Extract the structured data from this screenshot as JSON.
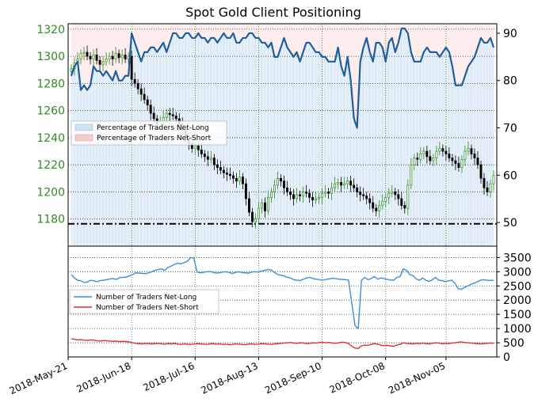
{
  "chart_data": [
    {
      "type": "candlestick-with-area-and-line",
      "title": "Spot Gold Client Positioning",
      "x_ticks": [
        "2018-May-21",
        "2018-Jun-18",
        "2018-Jul-16",
        "2018-Aug-13",
        "2018-Sep-10",
        "2018-Oct-08",
        "2018-Nov-05"
      ],
      "y_left": {
        "ticks": [
          1180,
          1200,
          1220,
          1240,
          1260,
          1280,
          1300,
          1320
        ],
        "range": [
          1160,
          1324
        ],
        "color": "#2e8b22"
      },
      "y_right": {
        "ticks": [
          50,
          60,
          70,
          80,
          90
        ],
        "range": [
          45,
          92
        ]
      },
      "legend": {
        "placement": "center-left",
        "entries": [
          "Percentage of Traders Net-Long",
          "Percentage of Traders Net-Short"
        ]
      },
      "reference_line": {
        "value": 1176.5,
        "style": "dash-dot"
      },
      "grid": true,
      "colors": {
        "net_long_area": "#cfe2f3",
        "net_short_area": "#f8cccc",
        "line": "#1f5f9e",
        "candle_up": "#2e8b22",
        "candle_down": "#000000"
      },
      "series": [
        {
          "name": "Percentage of Traders Net-Long",
          "values": [
            81,
            83,
            84,
            78,
            79,
            78,
            79,
            83,
            82,
            82,
            81,
            82,
            81,
            80,
            82,
            80,
            80,
            81,
            81,
            90,
            88,
            86,
            84,
            86,
            86,
            87,
            87,
            86,
            87,
            88,
            86,
            88,
            90,
            90,
            89,
            89,
            90,
            90,
            89,
            89,
            90,
            89,
            89,
            88,
            89,
            89,
            88,
            89,
            90,
            89,
            89,
            90,
            88,
            88,
            89,
            89,
            90,
            90,
            89,
            89,
            88,
            88,
            87,
            88,
            85,
            85,
            87,
            89,
            87,
            86,
            85,
            86,
            84,
            86,
            88,
            88,
            87,
            86,
            86,
            85,
            85,
            84,
            84,
            84,
            87,
            83,
            81,
            85,
            80,
            72,
            70,
            84,
            87,
            89,
            86,
            84,
            88,
            88,
            87,
            84,
            88,
            89,
            86,
            88,
            91,
            91,
            90,
            86,
            84,
            84,
            84,
            86,
            87,
            86,
            86,
            86,
            85,
            86,
            87,
            86,
            83,
            79,
            79,
            79,
            81,
            83,
            84,
            85,
            87,
            89,
            88,
            88,
            89,
            87
          ]
        },
        {
          "name": "Percentage of Traders Net-Short",
          "values": [
            19,
            17,
            16,
            22,
            21,
            22,
            21,
            17,
            18,
            18,
            19,
            18,
            19,
            20,
            18,
            20,
            20,
            19,
            19,
            10,
            12,
            14,
            16,
            14,
            14,
            13,
            13,
            14,
            13,
            12,
            14,
            12,
            10,
            10,
            11,
            11,
            10,
            10,
            11,
            11,
            10,
            11,
            11,
            12,
            11,
            11,
            12,
            11,
            10,
            11,
            11,
            10,
            12,
            12,
            11,
            11,
            10,
            10,
            11,
            11,
            12,
            12,
            13,
            12,
            15,
            15,
            13,
            11,
            13,
            14,
            15,
            14,
            16,
            14,
            12,
            12,
            13,
            14,
            14,
            15,
            15,
            16,
            16,
            16,
            13,
            17,
            19,
            15,
            20,
            28,
            30,
            16,
            13,
            11,
            14,
            16,
            12,
            12,
            13,
            16,
            12,
            11,
            14,
            12,
            9,
            9,
            10,
            14,
            16,
            16,
            16,
            14,
            13,
            14,
            14,
            14,
            15,
            14,
            13,
            14,
            17,
            21,
            21,
            21,
            19,
            17,
            16,
            15,
            13,
            11,
            12,
            12,
            11,
            13
          ]
        },
        {
          "name": "Spot Gold",
          "values": [
            1291,
            1295,
            1298,
            1302,
            1303,
            1300,
            1298,
            1301,
            1297,
            1294,
            1296,
            1298,
            1300,
            1298,
            1302,
            1299,
            1301,
            1298,
            1300,
            1283,
            1280,
            1276,
            1272,
            1268,
            1264,
            1258,
            1254,
            1250,
            1252,
            1255,
            1258,
            1257,
            1256,
            1254,
            1250,
            1245,
            1240,
            1236,
            1232,
            1234,
            1231,
            1228,
            1226,
            1224,
            1225,
            1220,
            1218,
            1216,
            1214,
            1213,
            1212,
            1210,
            1208,
            1211,
            1206,
            1195,
            1185,
            1178,
            1180,
            1188,
            1192,
            1186,
            1196,
            1200,
            1205,
            1210,
            1208,
            1203,
            1200,
            1198,
            1195,
            1198,
            1197,
            1200,
            1199,
            1196,
            1194,
            1195,
            1196,
            1199,
            1200,
            1199,
            1203,
            1206,
            1207,
            1205,
            1206,
            1208,
            1205,
            1203,
            1200,
            1198,
            1197,
            1195,
            1192,
            1188,
            1186,
            1190,
            1193,
            1196,
            1199,
            1200,
            1198,
            1195,
            1190,
            1188,
            1205,
            1220,
            1225,
            1224,
            1228,
            1230,
            1226,
            1223,
            1225,
            1230,
            1232,
            1230,
            1228,
            1225,
            1223,
            1221,
            1218,
            1224,
            1230,
            1232,
            1228,
            1225,
            1220,
            1210,
            1203,
            1200,
            1206,
            1212
          ]
        }
      ]
    },
    {
      "type": "line",
      "y_ticks": [
        0,
        500,
        1000,
        1500,
        2000,
        2500,
        3000,
        3500
      ],
      "y_range": [
        0,
        3900
      ],
      "legend": {
        "placement": "center-left",
        "entries": [
          "Number of Traders Net-Long",
          "Number of Traders Net-Short"
        ]
      },
      "grid": true,
      "colors": {
        "net_long": "#3c8fd8",
        "net_short": "#e03030"
      },
      "series": [
        {
          "name": "Number of Traders Net-Long",
          "values": [
            2900,
            2780,
            2700,
            2680,
            2620,
            2640,
            2700,
            2680,
            2650,
            2690,
            2700,
            2720,
            2750,
            2760,
            2730,
            2790,
            2800,
            2810,
            2850,
            2900,
            2960,
            2950,
            2940,
            2930,
            2960,
            3000,
            3050,
            3080,
            3100,
            3050,
            3150,
            3200,
            3260,
            3300,
            3280,
            3320,
            3370,
            3500,
            3480,
            2990,
            2960,
            2980,
            3000,
            3010,
            2980,
            2950,
            2960,
            2990,
            3000,
            2970,
            2940,
            2980,
            3000,
            2970,
            2960,
            2950,
            2990,
            3000,
            2990,
            3020,
            3050,
            3080,
            3060,
            2980,
            2900,
            2880,
            2850,
            2800,
            2780,
            2720,
            2700,
            2690,
            2740,
            2780,
            2800,
            2760,
            2740,
            2720,
            2700,
            2730,
            2750,
            2770,
            2760,
            2740,
            2730,
            2720,
            2700,
            1900,
            1100,
            1000,
            2700,
            2800,
            2720,
            2760,
            2830,
            2740,
            2780,
            2760,
            2730,
            2710,
            2700,
            2800,
            2830,
            3100,
            3050,
            2900,
            2860,
            2750,
            2700,
            2780,
            2700,
            2660,
            2720,
            2800,
            2700,
            2690,
            2650,
            2680,
            2700,
            2600,
            2400,
            2380,
            2450,
            2500,
            2560,
            2600,
            2650,
            2700,
            2720,
            2700,
            2690,
            2700
          ]
        },
        {
          "name": "Number of Traders Net-Short",
          "values": [
            640,
            620,
            600,
            610,
            590,
            580,
            600,
            590,
            570,
            560,
            580,
            570,
            560,
            550,
            560,
            540,
            550,
            540,
            530,
            500,
            480,
            470,
            460,
            480,
            470,
            460,
            470,
            480,
            460,
            450,
            470,
            460,
            480,
            450,
            440,
            460,
            450,
            440,
            450,
            470,
            460,
            450,
            440,
            460,
            470,
            450,
            460,
            440,
            450,
            430,
            440,
            460,
            450,
            440,
            430,
            450,
            460,
            440,
            450,
            470,
            460,
            450,
            440,
            460,
            470,
            480,
            490,
            500,
            510,
            490,
            480,
            500,
            490,
            470,
            480,
            500,
            490,
            510,
            520,
            500,
            510,
            490,
            480,
            500,
            520,
            510,
            470,
            380,
            310,
            300,
            390,
            420,
            410,
            440,
            470,
            450,
            420,
            400,
            410,
            390,
            380,
            420,
            440,
            500,
            480,
            470,
            460,
            480,
            470,
            490,
            470,
            460,
            480,
            500,
            490,
            470,
            480,
            470,
            490,
            500,
            520,
            530,
            510,
            500,
            490,
            480,
            470,
            460,
            470,
            480,
            490,
            480
          ]
        }
      ]
    }
  ]
}
